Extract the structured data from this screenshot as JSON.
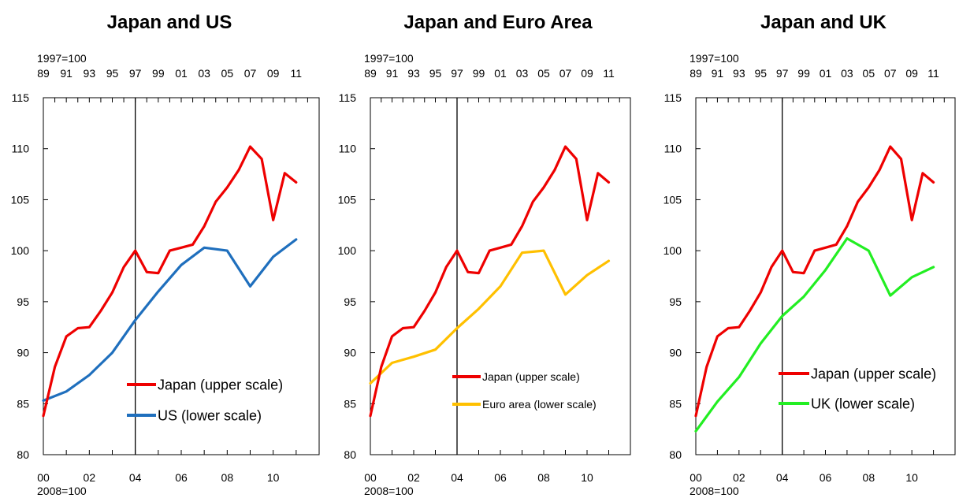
{
  "chart_data": [
    {
      "type": "line",
      "title": "Japan and US",
      "upper_axis": {
        "label": "1997=100",
        "tick_labels": [
          "89",
          "91",
          "93",
          "95",
          "97",
          "99",
          "01",
          "03",
          "05",
          "07",
          "09",
          "11"
        ]
      },
      "lower_axis": {
        "label": "2008=100",
        "tick_labels": [
          "00",
          "02",
          "04",
          "06",
          "08",
          "10"
        ]
      },
      "y_ticks": [
        "115",
        "110",
        "105",
        "100",
        "95",
        "90",
        "85",
        "80"
      ],
      "ylim": [
        80,
        115
      ],
      "legend_position": "bottom-right",
      "series": [
        {
          "name": "Japan (upper scale)",
          "color": "#ee0000",
          "axis": "upper",
          "x": [
            1989,
            1990,
            1991,
            1992,
            1993,
            1994,
            1995,
            1996,
            1997,
            1998,
            1999,
            2000,
            2001,
            2002,
            2003,
            2004,
            2005,
            2006,
            2007,
            2008,
            2009,
            2010,
            2011
          ],
          "y": [
            83.8,
            88.6,
            91.6,
            92.4,
            92.5,
            94.1,
            95.9,
            98.4,
            100.0,
            97.9,
            97.8,
            100.0,
            100.3,
            100.6,
            102.4,
            104.8,
            106.2,
            107.9,
            110.2,
            109.0,
            103.0,
            107.6,
            106.7
          ]
        },
        {
          "name": "US (lower scale)",
          "color": "#1f6fbd",
          "axis": "lower",
          "x": [
            2000,
            2001,
            2002,
            2003,
            2004,
            2005,
            2006,
            2007,
            2008,
            2009,
            2010,
            2011
          ],
          "y": [
            85.3,
            86.2,
            87.8,
            90.0,
            93.2,
            96.0,
            98.6,
            100.3,
            100.0,
            96.5,
            99.4,
            101.1
          ]
        }
      ]
    },
    {
      "type": "line",
      "title": "Japan and Euro Area",
      "upper_axis": {
        "label": "1997=100",
        "tick_labels": [
          "89",
          "91",
          "93",
          "95",
          "97",
          "99",
          "01",
          "03",
          "05",
          "07",
          "09",
          "11"
        ]
      },
      "lower_axis": {
        "label": "2008=100",
        "tick_labels": [
          "00",
          "02",
          "04",
          "06",
          "08",
          "10"
        ]
      },
      "y_ticks": [
        "115",
        "110",
        "105",
        "100",
        "95",
        "90",
        "85",
        "80"
      ],
      "ylim": [
        80,
        115
      ],
      "legend_position": "bottom-right",
      "series": [
        {
          "name": "Japan (upper scale)",
          "color": "#ee0000",
          "axis": "upper",
          "x": [
            1989,
            1990,
            1991,
            1992,
            1993,
            1994,
            1995,
            1996,
            1997,
            1998,
            1999,
            2000,
            2001,
            2002,
            2003,
            2004,
            2005,
            2006,
            2007,
            2008,
            2009,
            2010,
            2011
          ],
          "y": [
            83.8,
            88.6,
            91.6,
            92.4,
            92.5,
            94.1,
            95.9,
            98.4,
            100.0,
            97.9,
            97.8,
            100.0,
            100.3,
            100.6,
            102.4,
            104.8,
            106.2,
            107.9,
            110.2,
            109.0,
            103.0,
            107.6,
            106.7
          ]
        },
        {
          "name": "Euro area (lower scale)",
          "color": "#ffc000",
          "axis": "lower",
          "x": [
            2000,
            2001,
            2002,
            2003,
            2004,
            2005,
            2006,
            2007,
            2008,
            2009,
            2010,
            2011
          ],
          "y": [
            87.0,
            89.0,
            89.6,
            90.3,
            92.4,
            94.3,
            96.5,
            99.8,
            100.0,
            95.7,
            97.6,
            99.0
          ]
        }
      ]
    },
    {
      "type": "line",
      "title": "Japan and UK",
      "upper_axis": {
        "label": "1997=100",
        "tick_labels": [
          "89",
          "91",
          "93",
          "95",
          "97",
          "99",
          "01",
          "03",
          "05",
          "07",
          "09",
          "11"
        ]
      },
      "lower_axis": {
        "label": "2008=100",
        "tick_labels": [
          "00",
          "02",
          "04",
          "06",
          "08",
          "10"
        ]
      },
      "y_ticks": [
        "115",
        "110",
        "105",
        "100",
        "95",
        "90",
        "85",
        "80"
      ],
      "ylim": [
        80,
        115
      ],
      "legend_position": "center-right",
      "series": [
        {
          "name": "Japan (upper scale)",
          "color": "#ee0000",
          "axis": "upper",
          "x": [
            1989,
            1990,
            1991,
            1992,
            1993,
            1994,
            1995,
            1996,
            1997,
            1998,
            1999,
            2000,
            2001,
            2002,
            2003,
            2004,
            2005,
            2006,
            2007,
            2008,
            2009,
            2010,
            2011
          ],
          "y": [
            83.8,
            88.6,
            91.6,
            92.4,
            92.5,
            94.1,
            95.9,
            98.4,
            100.0,
            97.9,
            97.8,
            100.0,
            100.3,
            100.6,
            102.4,
            104.8,
            106.2,
            107.9,
            110.2,
            109.0,
            103.0,
            107.6,
            106.7
          ]
        },
        {
          "name": "UK (lower scale)",
          "color": "#22ee22",
          "axis": "lower",
          "x": [
            2000,
            2001,
            2002,
            2003,
            2004,
            2005,
            2006,
            2007,
            2008,
            2009,
            2010,
            2011
          ],
          "y": [
            82.3,
            85.2,
            87.6,
            90.9,
            93.6,
            95.5,
            98.1,
            101.2,
            100.0,
            95.6,
            97.4,
            98.4
          ]
        }
      ]
    }
  ]
}
